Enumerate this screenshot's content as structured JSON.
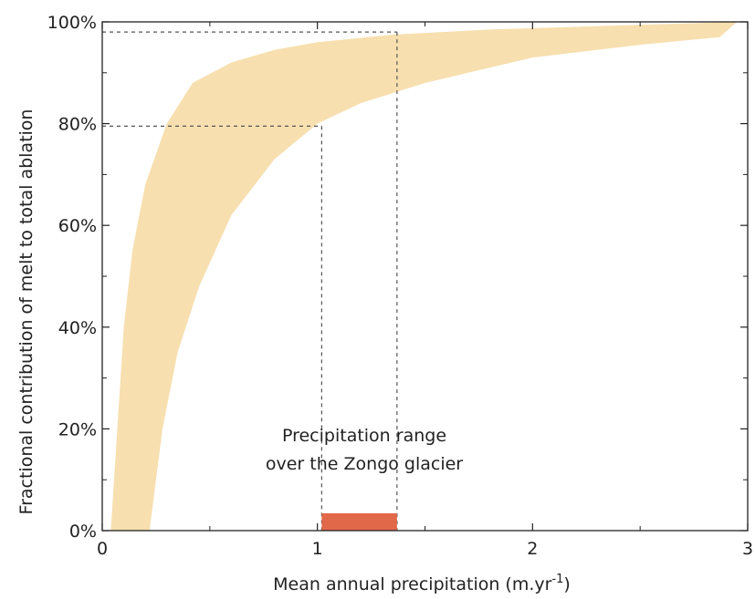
{
  "chart_data": {
    "type": "area",
    "xlabel": "Mean annual precipitation (m.yr",
    "xlabel_sup": "-1",
    "xlabel_tail": ")",
    "ylabel": "Fractional contribution of melt to total ablation",
    "xlim": [
      0,
      3
    ],
    "ylim": [
      0,
      100
    ],
    "x_ticks": [
      {
        "value": 0,
        "label": "0"
      },
      {
        "value": 1,
        "label": "1"
      },
      {
        "value": 2,
        "label": "2"
      },
      {
        "value": 3,
        "label": "3"
      }
    ],
    "y_ticks": [
      {
        "value": 0,
        "label": "0%"
      },
      {
        "value": 20,
        "label": "20%"
      },
      {
        "value": 40,
        "label": "40%"
      },
      {
        "value": 60,
        "label": "60%"
      },
      {
        "value": 80,
        "label": "80%"
      },
      {
        "value": 100,
        "label": "100%"
      }
    ],
    "band": {
      "color": "#f7dfaf",
      "upper": [
        [
          0.04,
          0
        ],
        [
          0.07,
          20
        ],
        [
          0.1,
          40
        ],
        [
          0.14,
          55
        ],
        [
          0.2,
          68
        ],
        [
          0.3,
          80
        ],
        [
          0.42,
          88
        ],
        [
          0.6,
          92
        ],
        [
          0.8,
          94.5
        ],
        [
          1.0,
          96
        ],
        [
          1.35,
          97.5
        ],
        [
          1.8,
          98.5
        ],
        [
          2.4,
          99.3
        ],
        [
          2.95,
          100
        ]
      ],
      "lower": [
        [
          2.95,
          100
        ],
        [
          2.87,
          97
        ],
        [
          2.5,
          95.5
        ],
        [
          2.0,
          93
        ],
        [
          1.5,
          88
        ],
        [
          1.2,
          84
        ],
        [
          1.0,
          80
        ],
        [
          0.8,
          73
        ],
        [
          0.6,
          62
        ],
        [
          0.45,
          48
        ],
        [
          0.35,
          35
        ],
        [
          0.28,
          20
        ],
        [
          0.22,
          0
        ]
      ]
    },
    "guides": [
      {
        "x": 1.02,
        "y": 79.5
      },
      {
        "x": 1.37,
        "y": 98
      }
    ],
    "range": {
      "x0": 1.02,
      "x1": 1.37,
      "color": "#e2684a"
    },
    "annotation_lines": [
      "Precipitation range",
      "over the Zongo glacier"
    ],
    "grid": false,
    "legend": "none"
  }
}
